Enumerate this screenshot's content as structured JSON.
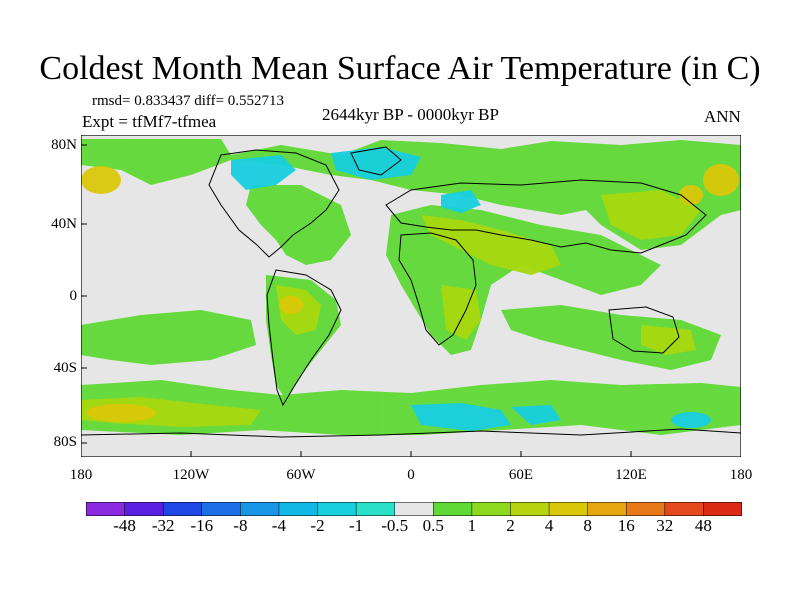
{
  "title": "Coldest Month Mean Surface Air Temperature (in C)",
  "stats_text": "rmsd= 0.833437  diff= 0.552713",
  "expt_text": "Expt = tfMf7-tfmea",
  "period_text": "2644kyr BP - 0000kyr BP",
  "season_text": "ANN",
  "y_axis_labels": [
    "80N",
    "40N",
    "0",
    "40S",
    "80S"
  ],
  "x_axis_labels": [
    "180",
    "120W",
    "60W",
    "0",
    "60E",
    "120E",
    "180"
  ],
  "colorbar": {
    "labels": [
      "-48",
      "-32",
      "-16",
      "-8",
      "-4",
      "-2",
      "-1",
      "-0.5",
      "0.5",
      "1",
      "2",
      "4",
      "8",
      "16",
      "32",
      "48"
    ],
    "colors": [
      "#8a2be2",
      "#5a1fe0",
      "#1f47e6",
      "#1c6fe6",
      "#1996e6",
      "#12b8e6",
      "#18cfe0",
      "#2be0c8",
      "#e6e6e6",
      "#5fd935",
      "#8ed820",
      "#b5d40e",
      "#d9c80a",
      "#e6a60f",
      "#e6781a",
      "#e34a1e",
      "#dc2b14"
    ]
  },
  "colors": {
    "land_outline": "#000000",
    "neutral": "#e6e6e6",
    "warm_main": "#7ed321",
    "warm_light": "#a8d80e",
    "warm_mid": "#cfd10c",
    "cool": "#18cfe0"
  }
}
